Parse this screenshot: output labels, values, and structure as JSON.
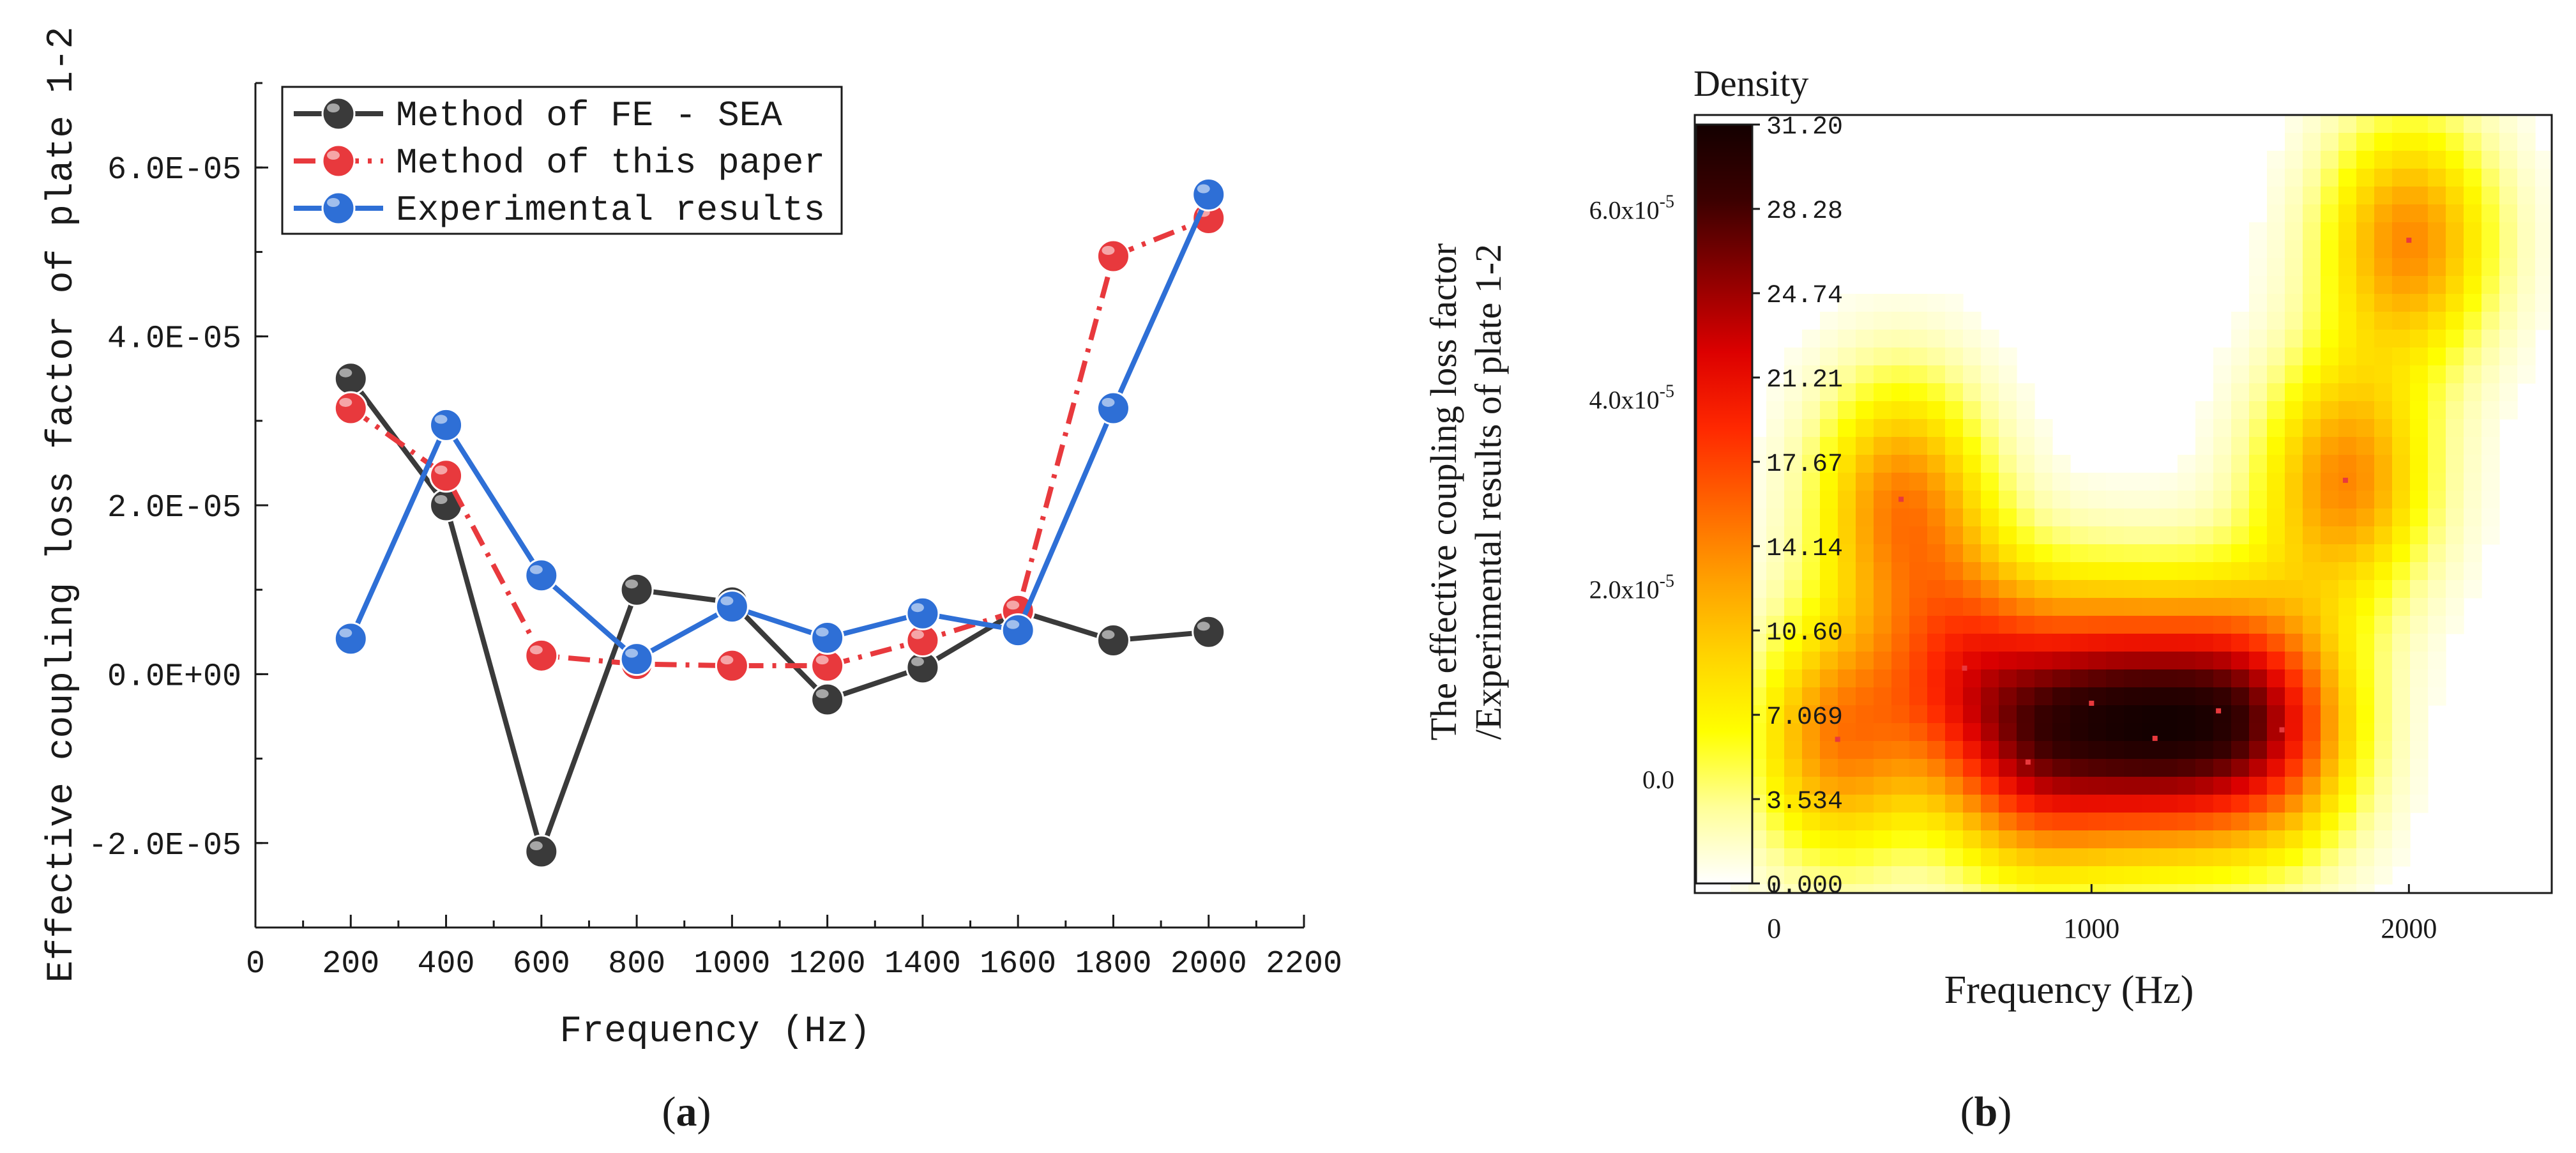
{
  "chart_data": [
    {
      "panel": "a",
      "type": "line",
      "xlabel": "Frequency (Hz)",
      "ylabel": "Effective coupling loss factor of plate 1-2",
      "xlim": [
        0,
        2200
      ],
      "ylim": [
        -3e-05,
        7e-05
      ],
      "x_ticks": [
        0,
        200,
        400,
        600,
        800,
        1000,
        1200,
        1400,
        1600,
        1800,
        2000,
        2200
      ],
      "x_tick_labels": [
        "0",
        "200",
        "400",
        "600",
        "800",
        "1000",
        "1200",
        "1400",
        "1600",
        "1800",
        "2000",
        "2200"
      ],
      "y_ticks": [
        -2e-05,
        0.0,
        2e-05,
        4e-05,
        6e-05
      ],
      "y_tick_labels": [
        "-2.0E-05",
        "0.0E+00",
        "2.0E-05",
        "4.0E-05",
        "6.0E-05"
      ],
      "legend_position": "top-left",
      "x": [
        200,
        400,
        600,
        800,
        1000,
        1200,
        1400,
        1600,
        1800,
        2000
      ],
      "series": [
        {
          "name": "Method of FE - SEA",
          "color": "#3a3a3a",
          "dash": "solid",
          "values": [
            3.5e-05,
            2e-05,
            -2.1e-05,
            1e-05,
            8.5e-06,
            -3e-06,
            8e-07,
            7.5e-06,
            4e-06,
            5e-06
          ]
        },
        {
          "name": "Method of this paper",
          "color": "#e8393d",
          "dash": "dashdot",
          "values": [
            3.15e-05,
            2.35e-05,
            2.2e-06,
            1.2e-06,
            1e-06,
            1e-06,
            4e-06,
            7.5e-06,
            4.95e-05,
            5.4e-05
          ]
        },
        {
          "name": "Experimental results",
          "color": "#2e6fd6",
          "dash": "solid",
          "values": [
            4.2e-06,
            2.95e-05,
            1.17e-05,
            1.8e-06,
            8e-06,
            4.3e-06,
            7.2e-06,
            5.2e-06,
            3.15e-05,
            5.68e-05
          ]
        }
      ],
      "caption": "(a)"
    },
    {
      "panel": "b",
      "type": "heatmap",
      "title": "Density",
      "xlabel": "Frequency (Hz)",
      "ylabel_line1": "The effective coupling loss factor",
      "ylabel_line2": "/Experimental results of plate 1-2",
      "xlim": [
        -250,
        2450
      ],
      "ylim": [
        -1.2e-05,
        7e-05
      ],
      "x_ticks": [
        0,
        1000,
        2000
      ],
      "x_tick_labels": [
        "0",
        "1000",
        "2000"
      ],
      "y_ticks": [
        0.0,
        2e-05,
        4e-05,
        6e-05
      ],
      "y_tick_labels": [
        {
          "base": "0.0",
          "exp": ""
        },
        {
          "base": "2.0x10",
          "exp": "-5"
        },
        {
          "base": "4.0x10",
          "exp": "-5"
        },
        {
          "base": "6.0x10",
          "exp": "-5"
        }
      ],
      "colorbar": {
        "min": 0.0,
        "max": 31.2,
        "tick_labels": [
          "0.000",
          "3.534",
          "7.069",
          "10.60",
          "14.14",
          "17.67",
          "21.21",
          "24.74",
          "28.28",
          "31.20"
        ],
        "colors": [
          "#ffffff",
          "#ffff99",
          "#ffff00",
          "#ffd400",
          "#ffa000",
          "#ff6400",
          "#ff2800",
          "#dc0000",
          "#8c0000",
          "#3c0000",
          "#140000"
        ]
      },
      "points": [
        {
          "x": 200,
          "y": 4.2e-06
        },
        {
          "x": 400,
          "y": 2.95e-05
        },
        {
          "x": 600,
          "y": 1.17e-05
        },
        {
          "x": 800,
          "y": 1.8e-06
        },
        {
          "x": 1000,
          "y": 8e-06
        },
        {
          "x": 1200,
          "y": 4.3e-06
        },
        {
          "x": 1400,
          "y": 7.2e-06
        },
        {
          "x": 1600,
          "y": 5.2e-06
        },
        {
          "x": 1800,
          "y": 3.15e-05
        },
        {
          "x": 2000,
          "y": 5.68e-05
        }
      ],
      "caption": "(b)"
    }
  ]
}
